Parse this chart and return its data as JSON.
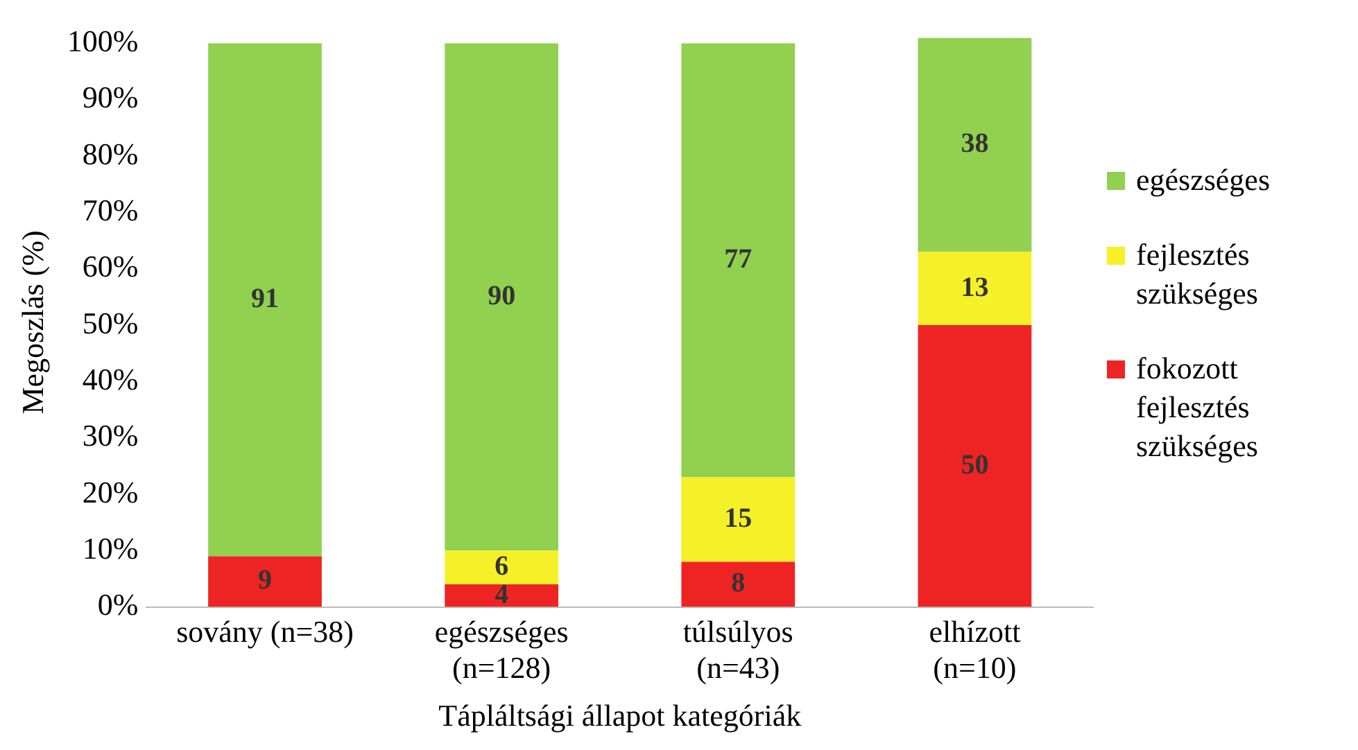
{
  "chart_data": {
    "type": "bar",
    "stacked": true,
    "xlabel": "Tápláltsági állapot kategóriák",
    "ylabel": "Megoszlás (%)",
    "categories": [
      "sovány (n=38)",
      "egészséges (n=128)",
      "túlsúlyos (n=43)",
      "elhízott (n=10)"
    ],
    "series": [
      {
        "name": "fokozott fejlesztés szükséges",
        "color": "#ee2424",
        "values": [
          9,
          4,
          8,
          50
        ]
      },
      {
        "name": "fejlesztés szükséges",
        "color": "#f5f028",
        "values": [
          null,
          6,
          15,
          13
        ]
      },
      {
        "name": "egészséges",
        "color": "#92d050",
        "values": [
          91,
          90,
          77,
          38
        ]
      }
    ],
    "ylim": [
      0,
      101
    ],
    "yticks": [
      {
        "value": 0,
        "label": "0%"
      },
      {
        "value": 10,
        "label": "10%"
      },
      {
        "value": 20,
        "label": "20%"
      },
      {
        "value": 30,
        "label": "30%"
      },
      {
        "value": 40,
        "label": "40%"
      },
      {
        "value": 50,
        "label": "50%"
      },
      {
        "value": 60,
        "label": "60%"
      },
      {
        "value": 70,
        "label": "70%"
      },
      {
        "value": 80,
        "label": "80%"
      },
      {
        "value": 90,
        "label": "90%"
      },
      {
        "value": 100,
        "label": "100%"
      }
    ],
    "grid": false,
    "legend": "right",
    "data_labels": true
  }
}
